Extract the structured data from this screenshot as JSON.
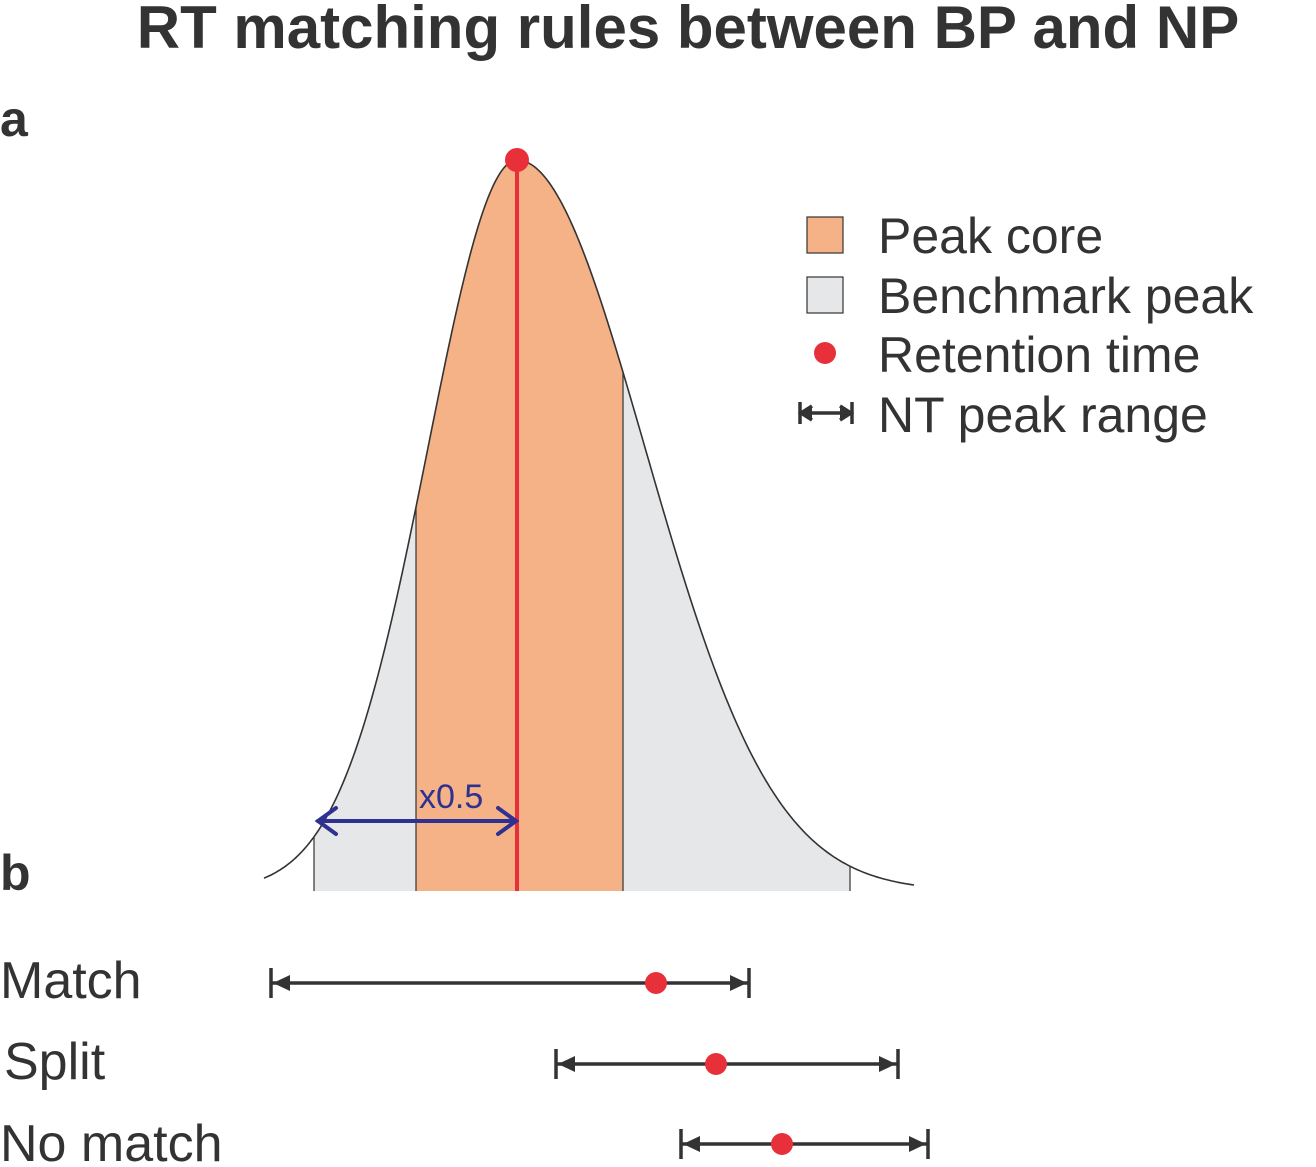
{
  "title": "RT matching rules between BP and NP",
  "panels": {
    "a": "a",
    "b": "b"
  },
  "legend": {
    "peak_core": "Peak core",
    "benchmark_peak": "Benchmark peak",
    "retention_time": "Retention time",
    "nt_peak_range": "NT peak range"
  },
  "annotation": "x0.5",
  "rows": [
    {
      "label": "Match"
    },
    {
      "label": "Split"
    },
    {
      "label": "No match"
    }
  ],
  "colors": {
    "peak_core": "#f4b286",
    "benchmark_peak": "#e6e7e9",
    "retention_time": "#e8303a",
    "range_line": "#333333",
    "annotation": "#2e3192",
    "text": "#333333"
  }
}
